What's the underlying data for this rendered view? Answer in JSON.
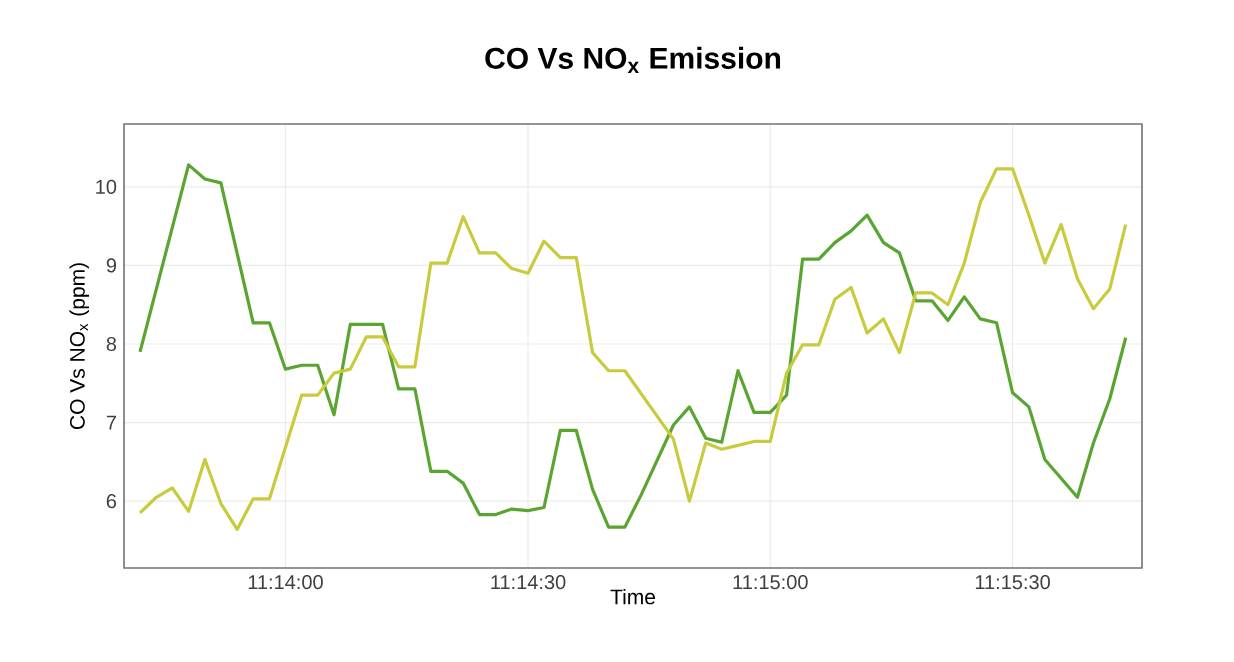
{
  "chart_data": {
    "type": "line",
    "title": "CO Vs NO$_{x}$ Emission",
    "xlabel": "Time",
    "ylabel": "CO Vs NO$_{x}$ (ppm)",
    "xlim": [
      11.22778,
      11.26278
    ],
    "ylim": [
      5.15,
      10.8
    ],
    "xticks": [
      {
        "value": 11.23333,
        "label": "11:14:00"
      },
      {
        "value": 11.24167,
        "label": "11:14:30"
      },
      {
        "value": 11.25,
        "label": "11:15:00"
      },
      {
        "value": 11.25833,
        "label": "11:15:30"
      }
    ],
    "yticks": [
      6,
      7,
      8,
      9,
      10
    ],
    "grid": true,
    "marker": "none",
    "line_style": "solid",
    "series": [
      {
        "color": "#5aa532",
        "x": [
          11.22833,
          11.23,
          11.23056,
          11.23111,
          11.23222,
          11.23278,
          11.23333,
          11.23389,
          11.23444,
          11.235,
          11.23556,
          11.23667,
          11.23722,
          11.23778,
          11.23833,
          11.23889,
          11.23944,
          11.24,
          11.24056,
          11.24111,
          11.24167,
          11.24222,
          11.24278,
          11.24333,
          11.24389,
          11.24444,
          11.245,
          11.24556,
          11.24667,
          11.24722,
          11.24778,
          11.24833,
          11.24889,
          11.24944,
          11.25,
          11.25056,
          11.25111,
          11.25167,
          11.25222,
          11.25278,
          11.25333,
          11.25389,
          11.25444,
          11.255,
          11.25556,
          11.25611,
          11.25667,
          11.25722,
          11.25778,
          11.25833,
          11.25889,
          11.25944,
          11.26056,
          11.26111,
          11.26167,
          11.26222
        ],
        "values": [
          7.9,
          10.28,
          10.1,
          10.05,
          8.27,
          8.27,
          7.68,
          7.73,
          7.73,
          7.1,
          8.25,
          8.25,
          7.43,
          7.43,
          6.38,
          6.38,
          6.23,
          5.83,
          5.83,
          5.9,
          5.88,
          5.92,
          6.9,
          6.9,
          6.15,
          5.67,
          5.67,
          6.08,
          6.97,
          7.2,
          6.8,
          6.75,
          7.66,
          7.13,
          7.13,
          7.35,
          9.08,
          9.08,
          9.29,
          9.44,
          9.64,
          9.29,
          9.16,
          8.55,
          8.55,
          8.3,
          8.6,
          8.32,
          8.27,
          7.38,
          7.2,
          6.53,
          6.05,
          6.74,
          7.3,
          8.08
        ]
      },
      {
        "color": "#c9cb3e",
        "x": [
          11.22833,
          11.22889,
          11.22944,
          11.23,
          11.23056,
          11.23111,
          11.23167,
          11.23222,
          11.23278,
          11.23389,
          11.23444,
          11.235,
          11.23556,
          11.23611,
          11.23667,
          11.23722,
          11.23778,
          11.23833,
          11.23889,
          11.23944,
          11.24,
          11.24056,
          11.24111,
          11.24167,
          11.24222,
          11.24278,
          11.24333,
          11.24389,
          11.24444,
          11.245,
          11.24667,
          11.24722,
          11.24778,
          11.24833,
          11.24889,
          11.24944,
          11.25,
          11.25056,
          11.25111,
          11.25167,
          11.25222,
          11.25278,
          11.25333,
          11.25389,
          11.25444,
          11.255,
          11.25556,
          11.25611,
          11.25667,
          11.25722,
          11.25778,
          11.25833,
          11.25889,
          11.25944,
          11.26,
          11.26056,
          11.26111,
          11.26167,
          11.26222
        ],
        "values": [
          5.85,
          6.05,
          6.17,
          5.87,
          6.53,
          5.97,
          5.64,
          6.03,
          6.03,
          7.35,
          7.35,
          7.63,
          7.68,
          8.09,
          8.09,
          7.71,
          7.71,
          9.03,
          9.03,
          9.62,
          9.16,
          9.16,
          8.96,
          8.9,
          9.31,
          9.1,
          9.1,
          7.89,
          7.66,
          7.66,
          6.79,
          6.0,
          6.74,
          6.66,
          6.71,
          6.76,
          6.76,
          7.63,
          7.99,
          7.99,
          8.57,
          8.72,
          8.14,
          8.32,
          7.89,
          8.65,
          8.65,
          8.5,
          9.03,
          9.8,
          10.23,
          10.23,
          9.64,
          9.03,
          9.52,
          8.83,
          8.45,
          8.7,
          9.52
        ]
      }
    ]
  }
}
